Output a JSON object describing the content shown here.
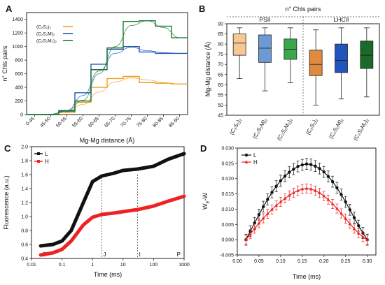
{
  "chart_data": [
    {
      "panel": "A",
      "type": "line",
      "xlabel": "Mg-Mg distance (Å)",
      "ylabel": "n° Chls pairs",
      "categories": [
        "0-45",
        "45-50",
        "50-55",
        "55-60",
        "60-65",
        "65-70",
        "70-75",
        "75-80",
        "80-85",
        "85-90"
      ],
      "ylim": [
        0,
        1500
      ],
      "yticks": [
        0,
        200,
        400,
        600,
        800,
        1000,
        1200,
        1400
      ],
      "legend_position": "top-left",
      "series": [
        {
          "name": "(C₂S₂)₂",
          "color": "#f0a020",
          "values": [
            0,
            0,
            30,
            180,
            400,
            530,
            560,
            470,
            460,
            450
          ],
          "fit": [
            0,
            5,
            40,
            150,
            330,
            480,
            540,
            510,
            470,
            450
          ]
        },
        {
          "name": "(C₂S₂M)₂",
          "color": "#2255bb",
          "values": [
            0,
            0,
            60,
            320,
            740,
            960,
            1000,
            920,
            900,
            900
          ],
          "fit": [
            0,
            5,
            60,
            280,
            640,
            900,
            990,
            940,
            910,
            900
          ]
        },
        {
          "name": "(C₂S₂M₂)₂",
          "color": "#1a7a30",
          "values": [
            0,
            0,
            50,
            200,
            660,
            980,
            1370,
            1380,
            1300,
            1130
          ],
          "fit": [
            0,
            5,
            50,
            210,
            600,
            1000,
            1310,
            1380,
            1280,
            1130
          ]
        }
      ]
    },
    {
      "panel": "B",
      "type": "box",
      "title": "n° Chls pairs",
      "groups": [
        "PSII",
        "LHCII"
      ],
      "ylabel": "Mg-Mg distance (Å)",
      "ylim": [
        45,
        90
      ],
      "yticks": [
        45,
        50,
        55,
        60,
        65,
        70,
        75,
        80,
        85,
        90
      ],
      "categories": [
        "(C₂S₂)₂",
        "(C₂S₂M)₂",
        "(C₂S₂M₂)₂",
        "(C₂S₂)₂",
        "(C₂S₂M)₂",
        "(C₂S₂M₂)₂"
      ],
      "boxes": [
        {
          "q1": 74.5,
          "median": 80.5,
          "q3": 85,
          "whisker_low": 63,
          "whisker_high": 88,
          "color": "#f5c894"
        },
        {
          "q1": 71,
          "median": 78,
          "q3": 84.5,
          "whisker_low": 57,
          "whisker_high": 88,
          "color": "#6a9bd4"
        },
        {
          "q1": 72.5,
          "median": 77.5,
          "q3": 82.5,
          "whisker_low": 61,
          "whisker_high": 88,
          "color": "#3aa84a"
        },
        {
          "q1": 64.5,
          "median": 70,
          "q3": 77,
          "whisker_low": 50,
          "whisker_high": 87,
          "color": "#e08a40"
        },
        {
          "q1": 66,
          "median": 72,
          "q3": 80,
          "whisker_low": 53,
          "whisker_high": 88,
          "color": "#2255bb"
        },
        {
          "q1": 68,
          "median": 74.5,
          "q3": 81.5,
          "whisker_low": 54,
          "whisker_high": 88,
          "color": "#1a6a2a"
        }
      ]
    },
    {
      "panel": "C",
      "type": "scatter",
      "xlabel": "Time (ms)",
      "ylabel": "Fluorescence (a.u.)",
      "xscale": "log",
      "xlim": [
        0.01,
        1000
      ],
      "xticks": [
        0.01,
        0.1,
        1,
        10,
        100,
        1000
      ],
      "xticklabels": [
        "0.01",
        "0.1",
        "1",
        "10",
        "100",
        "1000"
      ],
      "ylim": [
        0.4,
        2.0
      ],
      "yticks": [
        0.4,
        0.6,
        0.8,
        1.0,
        1.2,
        1.4,
        1.6,
        1.8,
        2.0
      ],
      "yticklabels": [
        "0.4",
        "0.6",
        "0.8",
        "1.0",
        "1.2",
        "1.4",
        "1.6",
        "1.8",
        "2.0"
      ],
      "annotations": [
        {
          "label": "O",
          "x": 0.02
        },
        {
          "label": "J",
          "x": 2
        },
        {
          "label": "I",
          "x": 30
        },
        {
          "label": "P",
          "x": 1000
        }
      ],
      "legend_position": "top-left",
      "series": [
        {
          "name": "L",
          "color": "#111111",
          "points": [
            [
              0.02,
              0.58
            ],
            [
              0.05,
              0.6
            ],
            [
              0.1,
              0.65
            ],
            [
              0.2,
              0.8
            ],
            [
              0.5,
              1.2
            ],
            [
              1,
              1.5
            ],
            [
              2,
              1.58
            ],
            [
              5,
              1.62
            ],
            [
              10,
              1.66
            ],
            [
              30,
              1.68
            ],
            [
              100,
              1.72
            ],
            [
              300,
              1.82
            ],
            [
              1000,
              1.9
            ]
          ]
        },
        {
          "name": "H",
          "color": "#ee2222",
          "points": [
            [
              0.02,
              0.45
            ],
            [
              0.05,
              0.48
            ],
            [
              0.1,
              0.53
            ],
            [
              0.2,
              0.65
            ],
            [
              0.5,
              0.88
            ],
            [
              1,
              0.99
            ],
            [
              2,
              1.03
            ],
            [
              5,
              1.05
            ],
            [
              10,
              1.07
            ],
            [
              30,
              1.1
            ],
            [
              100,
              1.15
            ],
            [
              300,
              1.22
            ],
            [
              1000,
              1.29
            ]
          ]
        }
      ]
    },
    {
      "panel": "D",
      "type": "line",
      "xlabel": "Time (ms)",
      "ylabel": "W_E - W",
      "xlim": [
        0,
        0.32
      ],
      "xticks": [
        0.0,
        0.05,
        0.1,
        0.15,
        0.2,
        0.25,
        0.3
      ],
      "xticklabels": [
        "0.00",
        "0.05",
        "0.10",
        "0.15",
        "0.20",
        "0.25",
        "0.30"
      ],
      "ylim": [
        -0.005,
        0.03
      ],
      "yticks": [
        -0.005,
        0.0,
        0.005,
        0.01,
        0.015,
        0.02,
        0.025,
        0.03
      ],
      "yticklabels": [
        "-0.005",
        "0.000",
        "0.005",
        "0.010",
        "0.015",
        "0.020",
        "0.025",
        "0.030"
      ],
      "legend_position": "top-left",
      "series": [
        {
          "name": "L",
          "color": "#111111",
          "marker": "circle",
          "x": [
            0.02,
            0.03,
            0.04,
            0.05,
            0.06,
            0.07,
            0.08,
            0.09,
            0.1,
            0.11,
            0.12,
            0.13,
            0.14,
            0.15,
            0.16,
            0.17,
            0.18,
            0.19,
            0.2,
            0.21,
            0.22,
            0.23,
            0.24,
            0.25,
            0.26,
            0.27,
            0.28,
            0.29,
            0.3
          ],
          "y": [
            0.0,
            0.0028,
            0.0055,
            0.0082,
            0.0108,
            0.0132,
            0.0155,
            0.0175,
            0.0193,
            0.0208,
            0.0221,
            0.0231,
            0.024,
            0.0245,
            0.0248,
            0.0246,
            0.0241,
            0.0233,
            0.0222,
            0.0207,
            0.019,
            0.017,
            0.0148,
            0.0124,
            0.0098,
            0.0072,
            0.0046,
            0.0022,
            0.0
          ],
          "err": 0.0018
        },
        {
          "name": "H",
          "color": "#ee2222",
          "marker": "triangle",
          "x": [
            0.02,
            0.03,
            0.04,
            0.05,
            0.06,
            0.07,
            0.08,
            0.09,
            0.1,
            0.11,
            0.12,
            0.13,
            0.14,
            0.15,
            0.16,
            0.17,
            0.18,
            0.19,
            0.2,
            0.21,
            0.22,
            0.23,
            0.24,
            0.25,
            0.26,
            0.27,
            0.28,
            0.29,
            0.3
          ],
          "y": [
            0.0,
            0.0018,
            0.0036,
            0.0054,
            0.007,
            0.0085,
            0.0099,
            0.0112,
            0.0124,
            0.0135,
            0.0145,
            0.0154,
            0.0161,
            0.0166,
            0.0168,
            0.0166,
            0.0161,
            0.0153,
            0.0143,
            0.0131,
            0.0117,
            0.0102,
            0.0086,
            0.0069,
            0.0052,
            0.0036,
            0.0021,
            0.0009,
            0.0
          ],
          "err": 0.0015
        }
      ]
    }
  ]
}
